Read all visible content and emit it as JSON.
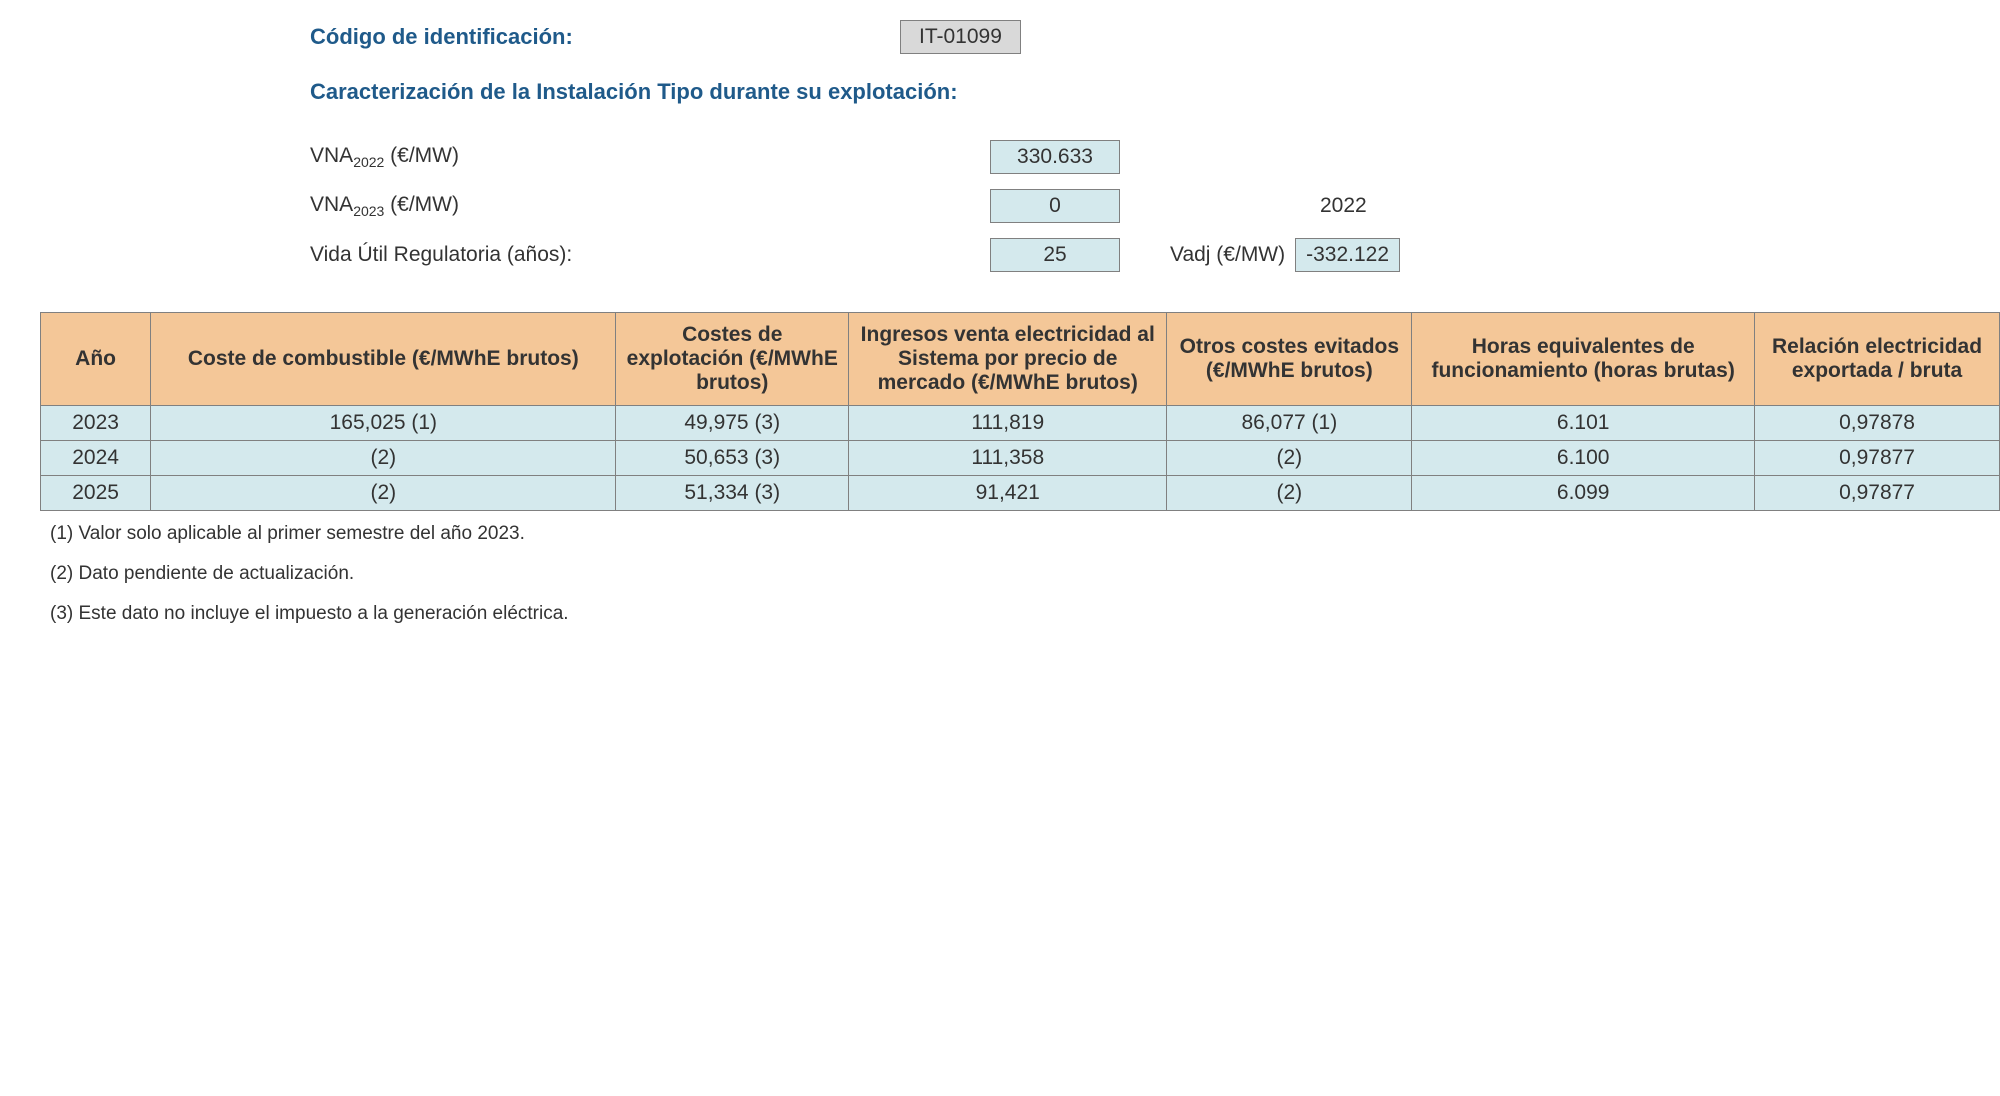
{
  "header": {
    "code_label": "Código de identificación:",
    "code_value": "IT-01099",
    "section_title": "Caracterización de la Instalación Tipo durante su explotación:"
  },
  "vna": {
    "vna2022_label_pre": "VNA",
    "vna2022_sub": "2022",
    "vna2022_label_post": " (€/MW)",
    "vna2022_value": "330.633",
    "vna2023_label_pre": "VNA",
    "vna2023_sub": "2023",
    "vna2023_label_post": " (€/MW)",
    "vna2023_value": "0",
    "year_ref": "2022",
    "vida_label": "Vida Útil Regulatoria (años):",
    "vida_value": "25",
    "vadj_label": "Vadj (€/MW)",
    "vadj_value": "-332.122"
  },
  "table": {
    "columns": [
      "Año",
      "Coste de combustible (€/MWhE brutos)",
      "Costes de explotación (€/MWhE brutos)",
      "Ingresos venta electricidad al Sistema por precio de mercado (€/MWhE brutos)",
      "Otros costes evitados (€/MWhE brutos)",
      "Horas equivalentes de funcionamiento (horas brutas)",
      "Relación electricidad exportada / bruta"
    ],
    "rows": [
      [
        "2023",
        "165,025 (1)",
        "49,975 (3)",
        "111,819",
        "86,077 (1)",
        "6.101",
        "0,97878"
      ],
      [
        "2024",
        "(2)",
        "50,653 (3)",
        "111,358",
        "(2)",
        "6.100",
        "0,97877"
      ],
      [
        "2025",
        "(2)",
        "51,334 (3)",
        "91,421",
        "(2)",
        "6.099",
        "0,97877"
      ]
    ]
  },
  "footnotes": [
    "(1) Valor solo aplicable al primer semestre del año 2023.",
    "(2) Dato pendiente de actualización.",
    "(3) Este dato no incluye el impuesto a la generación eléctrica."
  ],
  "colors": {
    "header_bg": "#f4c798",
    "cell_bg": "#d4e9ed",
    "code_bg": "#d9d9d9",
    "title_color": "#1f5a8a",
    "border_color": "#808080"
  }
}
